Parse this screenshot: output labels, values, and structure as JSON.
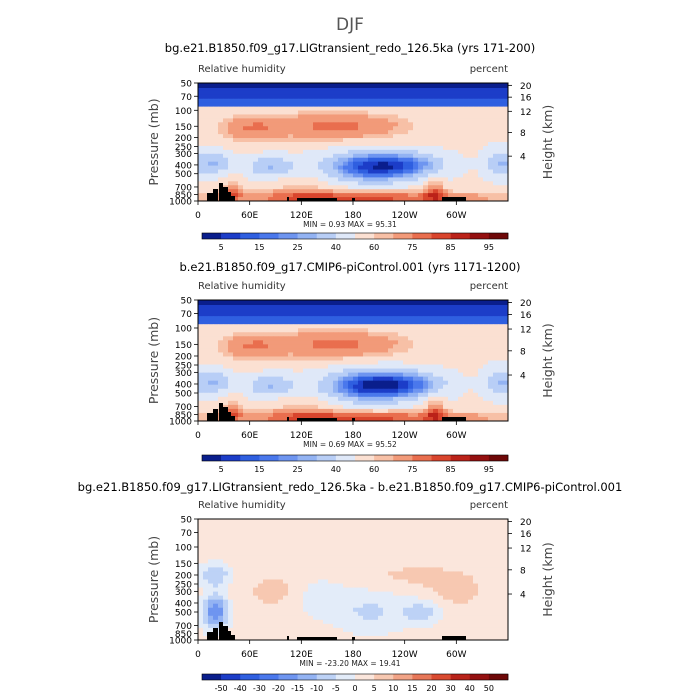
{
  "figure": {
    "title": "DJF"
  },
  "colorbar_full": {
    "labels": [
      "5",
      "15",
      "25",
      "40",
      "60",
      "75",
      "85",
      "95"
    ]
  },
  "colorbar_diff": {
    "labels": [
      "-50",
      "-40",
      "-30",
      "-20",
      "-15",
      "-10",
      "-5",
      "0",
      "5",
      "10",
      "15",
      "20",
      "30",
      "40",
      "50"
    ]
  },
  "chart_data": [
    {
      "type": "heatmap",
      "title": "bg.e21.B1850.f09_g17.LIGtransient_redo_126.5ka (yrs 171-200)",
      "variable_label": "Relative humidity",
      "units_label": "percent",
      "ylabel": "Pressure (mb)",
      "ylabel_right": "Height (km)",
      "x_ticks": [
        "0",
        "60E",
        "120E",
        "180",
        "120W",
        "60W"
      ],
      "y_ticks": [
        "50",
        "70",
        "100",
        "150",
        "200",
        "250",
        "300",
        "400",
        "500",
        "700",
        "850",
        "1000"
      ],
      "y_ticks_right": [
        "20",
        "16",
        "12",
        "8",
        "4"
      ],
      "stats": {
        "min": "0.93",
        "max": "95.31",
        "text": "MIN =    0.93   MAX =  95.31"
      },
      "levels": [
        5,
        10,
        15,
        20,
        25,
        30,
        40,
        50,
        60,
        65,
        75,
        80,
        85,
        90,
        95
      ],
      "colors": {
        "low": "#0a1e8c",
        "mid": "#f2f5fa",
        "high": "#7a0a0a"
      },
      "orography": "black",
      "grid": false
    },
    {
      "type": "heatmap",
      "title": "b.e21.B1850.f09_g17.CMIP6-piControl.001 (yrs 1171-1200)",
      "variable_label": "Relative humidity",
      "units_label": "percent",
      "ylabel": "Pressure (mb)",
      "ylabel_right": "Height (km)",
      "x_ticks": [
        "0",
        "60E",
        "120E",
        "180",
        "120W",
        "60W"
      ],
      "y_ticks": [
        "50",
        "70",
        "100",
        "150",
        "200",
        "250",
        "300",
        "400",
        "500",
        "700",
        "850",
        "1000"
      ],
      "y_ticks_right": [
        "20",
        "16",
        "12",
        "8",
        "4"
      ],
      "stats": {
        "min": "0.69",
        "max": "95.52",
        "text": "MIN =    0.69   MAX =  95.52"
      },
      "levels": [
        5,
        10,
        15,
        20,
        25,
        30,
        40,
        50,
        60,
        65,
        75,
        80,
        85,
        90,
        95
      ],
      "colors": {
        "low": "#0a1e8c",
        "mid": "#f2f5fa",
        "high": "#7a0a0a"
      },
      "orography": "black",
      "grid": false
    },
    {
      "type": "heatmap",
      "title": "bg.e21.B1850.f09_g17.LIGtransient_redo_126.5ka - b.e21.B1850.f09_g17.CMIP6-piControl.001",
      "variable_label": "Relative humidity",
      "units_label": "percent",
      "ylabel": "Pressure (mb)",
      "ylabel_right": "Height (km)",
      "x_ticks": [
        "0",
        "60E",
        "120E",
        "180",
        "120W",
        "60W"
      ],
      "y_ticks": [
        "50",
        "70",
        "100",
        "150",
        "200",
        "250",
        "300",
        "400",
        "500",
        "700",
        "850",
        "1000"
      ],
      "y_ticks_right": [
        "20",
        "16",
        "12",
        "8",
        "4"
      ],
      "stats": {
        "min": "-23.20",
        "max": "19.41",
        "text": "MIN = -23.20   MAX =  19.41"
      },
      "levels": [
        -50,
        -40,
        -30,
        -20,
        -15,
        -10,
        -5,
        0,
        5,
        10,
        15,
        20,
        30,
        40,
        50
      ],
      "colors": {
        "low": "#0a1e8c",
        "mid": "#ffffff",
        "high": "#7a0a0a"
      },
      "orography": "black",
      "grid": false
    }
  ]
}
